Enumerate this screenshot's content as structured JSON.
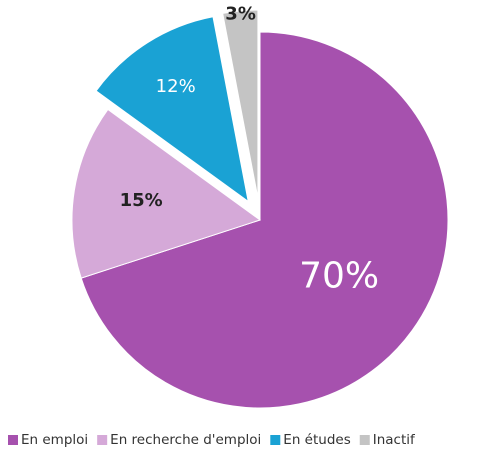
{
  "chart_data": {
    "type": "pie",
    "categories": [
      "En emploi",
      "En recherche d'emploi",
      "En études",
      "Inactif"
    ],
    "values": [
      70,
      15,
      12,
      3
    ],
    "value_labels": [
      "70%",
      "15%",
      "12%",
      "3%"
    ],
    "colors": [
      "#a651ae",
      "#d5a9d8",
      "#1aa2d4",
      "#c4c4c4"
    ],
    "legend": "bottom"
  }
}
